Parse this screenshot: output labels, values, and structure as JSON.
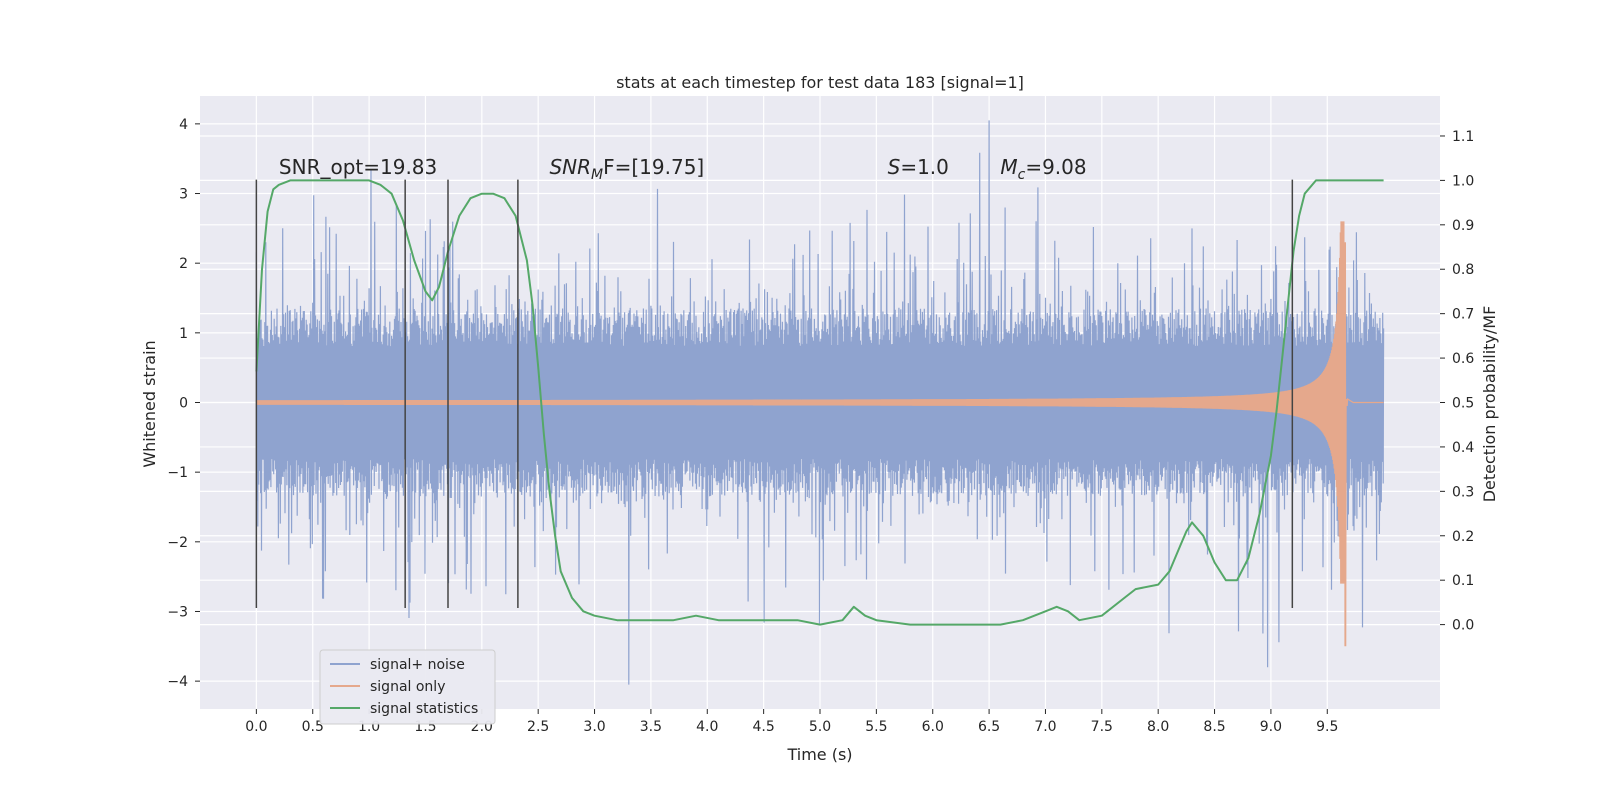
{
  "chart_data": {
    "type": "line",
    "title": "stats at each timestep for test data 183 [signal=1]",
    "xlabel": "Time (s)",
    "ylabel_left": "Whitened strain",
    "ylabel_right": "Detection probability/MF",
    "xlim": [
      -0.5,
      10.5
    ],
    "ylim_left": [
      -4.4,
      4.4
    ],
    "ylim_right": [
      -0.19,
      1.19
    ],
    "xticks": [
      0.0,
      0.5,
      1.0,
      1.5,
      2.0,
      2.5,
      3.0,
      3.5,
      4.0,
      4.5,
      5.0,
      5.5,
      6.0,
      6.5,
      7.0,
      7.5,
      8.0,
      8.5,
      9.0,
      9.5
    ],
    "xtick_labels": [
      "0.0",
      "0.5",
      "1.0",
      "1.5",
      "2.0",
      "2.5",
      "3.0",
      "3.5",
      "4.0",
      "4.5",
      "5.0",
      "5.5",
      "6.0",
      "6.5",
      "7.0",
      "7.5",
      "8.0",
      "8.5",
      "9.0",
      "9.5"
    ],
    "yticks_left": [
      -4,
      -3,
      -2,
      -1,
      0,
      1,
      2,
      3,
      4
    ],
    "ytick_labels_left": [
      "−4",
      "−3",
      "−2",
      "−1",
      "0",
      "1",
      "2",
      "3",
      "4"
    ],
    "yticks_right": [
      0.0,
      0.1,
      0.2,
      0.3,
      0.4,
      0.5,
      0.6,
      0.7,
      0.8,
      0.9,
      1.0,
      1.1
    ],
    "ytick_labels_right": [
      "0.0",
      "0.1",
      "0.2",
      "0.3",
      "0.4",
      "0.5",
      "0.6",
      "0.7",
      "0.8",
      "0.9",
      "1.0",
      "1.1"
    ],
    "grid": true,
    "legend_position": "lower-left",
    "annotations": [
      {
        "x": 0.2,
        "y": 3.28,
        "text": "SNR_opt=19.83"
      },
      {
        "x": 2.6,
        "y": 3.28,
        "text_main": "SNR",
        "text_sub": "M",
        "text_rest": "F=[19.75]"
      },
      {
        "x": 5.6,
        "y": 3.28,
        "text_main": "S",
        "text_rest": "=1.0"
      },
      {
        "x": 6.6,
        "y": 3.28,
        "text_main": "M",
        "text_sub": "c",
        "text_rest": "=9.08"
      }
    ],
    "vlines": {
      "x": [
        0.0,
        1.32,
        1.7,
        2.32,
        9.19
      ],
      "ymin": -2.95,
      "ymax": 3.2,
      "color": "#444444"
    },
    "series": [
      {
        "name": "signal+ noise",
        "color": "#8fa3cf",
        "axis": "left",
        "x_range": [
          0.0,
          10.0
        ],
        "envelope_abs": 1.35,
        "spike_max": 4.05,
        "spike_min": -3.8
      },
      {
        "name": "signal only",
        "color": "#e5a88c",
        "axis": "left",
        "x_range": [
          0.0,
          9.68
        ],
        "peak_time": 9.66,
        "peak_pos": 2.3,
        "peak_neg": -3.5
      },
      {
        "name": "signal statistics",
        "color": "#55a868",
        "axis": "right",
        "x": [
          0.0,
          0.05,
          0.1,
          0.15,
          0.2,
          0.3,
          0.5,
          0.7,
          0.9,
          1.0,
          1.1,
          1.2,
          1.3,
          1.4,
          1.5,
          1.56,
          1.62,
          1.7,
          1.8,
          1.9,
          2.0,
          2.1,
          2.2,
          2.3,
          2.4,
          2.45,
          2.5,
          2.55,
          2.6,
          2.65,
          2.7,
          2.8,
          2.9,
          3.0,
          3.2,
          3.5,
          3.7,
          3.9,
          4.1,
          4.3,
          4.6,
          4.8,
          5.0,
          5.2,
          5.3,
          5.4,
          5.5,
          5.8,
          6.2,
          6.6,
          6.8,
          7.0,
          7.1,
          7.2,
          7.3,
          7.5,
          7.7,
          7.8,
          8.0,
          8.1,
          8.2,
          8.25,
          8.3,
          8.4,
          8.5,
          8.6,
          8.7,
          8.8,
          8.9,
          9.0,
          9.05,
          9.1,
          9.15,
          9.2,
          9.25,
          9.3,
          9.4,
          9.5,
          9.7,
          9.9,
          10.0
        ],
        "y": [
          0.57,
          0.8,
          0.93,
          0.98,
          0.99,
          1.0,
          1.0,
          1.0,
          1.0,
          1.0,
          0.99,
          0.97,
          0.91,
          0.82,
          0.75,
          0.73,
          0.76,
          0.84,
          0.92,
          0.96,
          0.97,
          0.97,
          0.96,
          0.92,
          0.82,
          0.72,
          0.58,
          0.43,
          0.3,
          0.2,
          0.12,
          0.06,
          0.03,
          0.02,
          0.01,
          0.01,
          0.01,
          0.02,
          0.01,
          0.01,
          0.01,
          0.01,
          0.0,
          0.01,
          0.04,
          0.02,
          0.01,
          0.0,
          0.0,
          0.0,
          0.01,
          0.03,
          0.04,
          0.03,
          0.01,
          0.02,
          0.06,
          0.08,
          0.09,
          0.12,
          0.18,
          0.21,
          0.23,
          0.2,
          0.14,
          0.1,
          0.1,
          0.15,
          0.25,
          0.38,
          0.48,
          0.6,
          0.72,
          0.84,
          0.92,
          0.97,
          1.0,
          1.0,
          1.0,
          1.0,
          1.0
        ]
      }
    ]
  }
}
